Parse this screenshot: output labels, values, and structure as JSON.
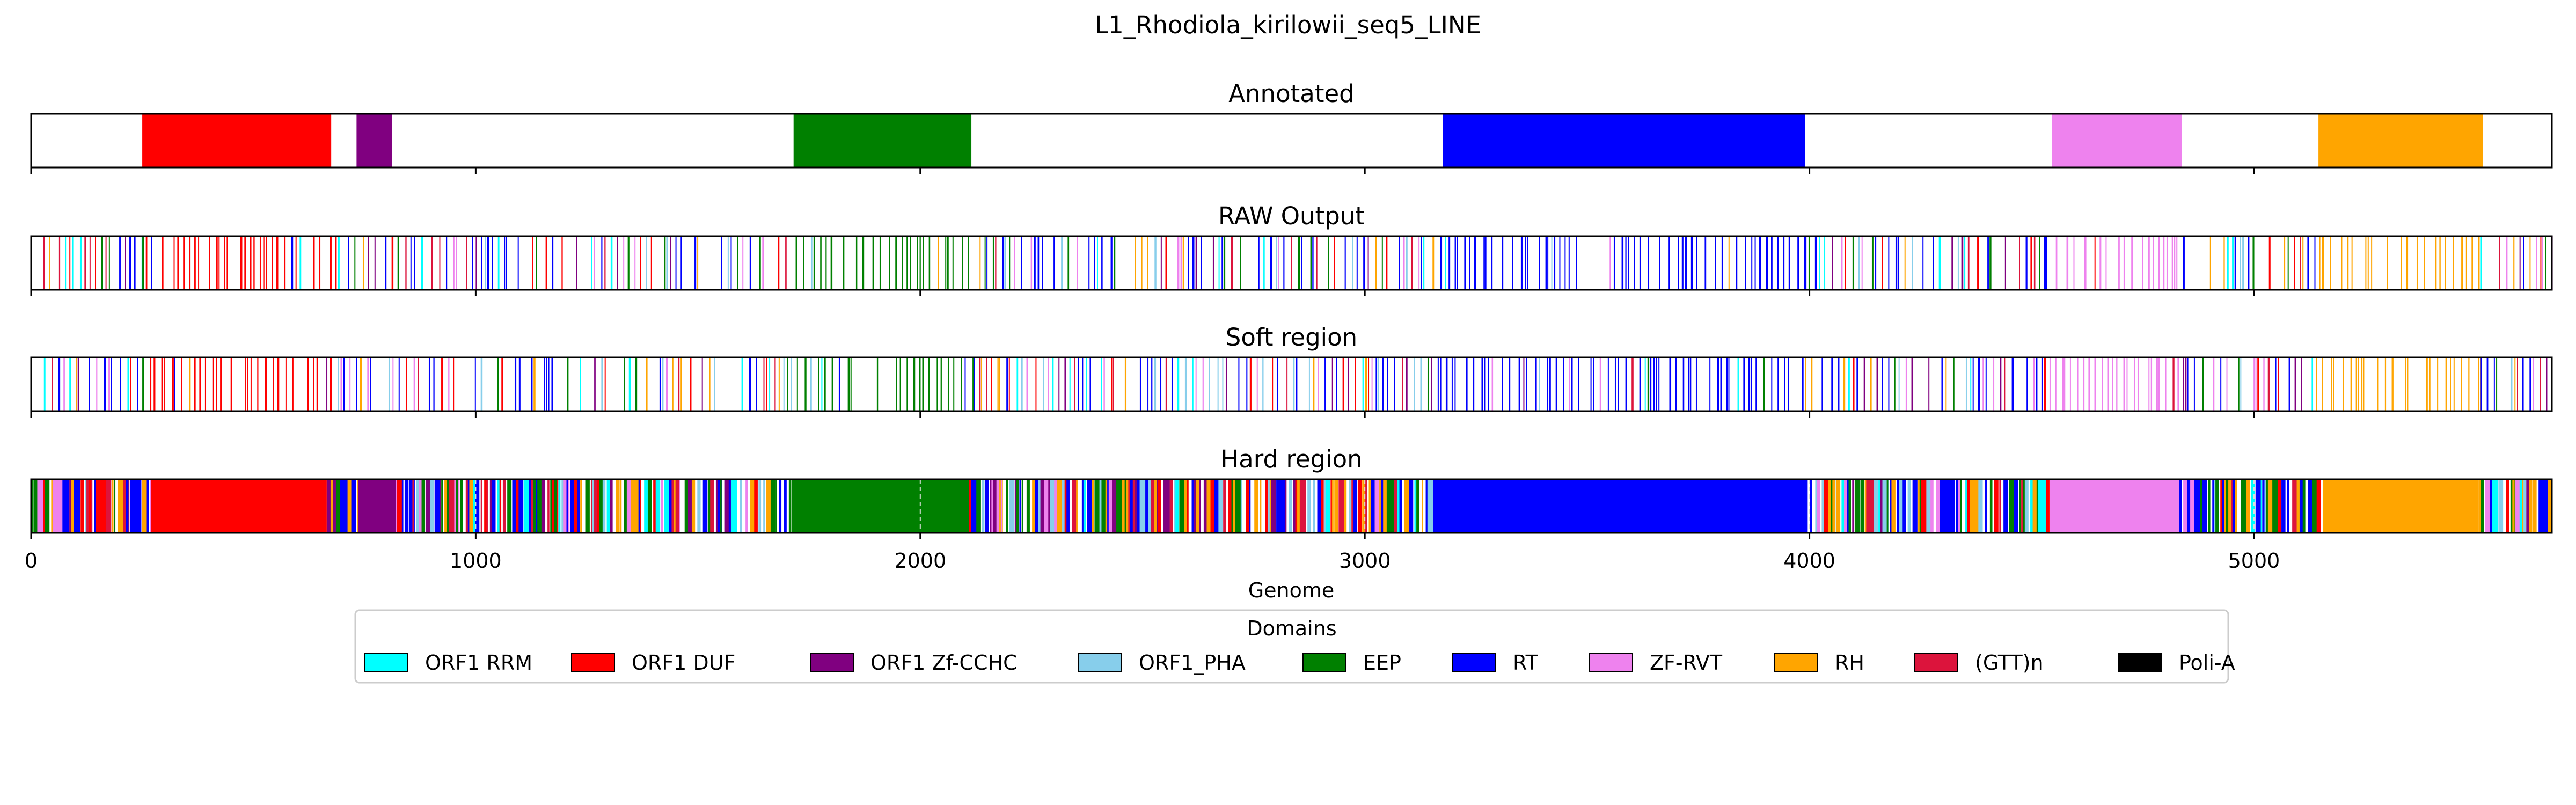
{
  "chart_data": {
    "type": "genome-track",
    "title": "L1_Rhodiola_kirilowii_seq5_LINE",
    "xlabel": "Genome",
    "xlim": [
      0,
      5670
    ],
    "xticks": [
      0,
      1000,
      2000,
      3000,
      4000,
      5000
    ],
    "xtick_labels": [
      "0",
      "1000",
      "2000",
      "3000",
      "4000",
      "5000"
    ],
    "legend_title": "Domains",
    "legend_position": "bottom-center",
    "domains": [
      {
        "key": "rrm",
        "name": "ORF1 RRM",
        "color": "#00ffff"
      },
      {
        "key": "duf",
        "name": "ORF1 DUF",
        "color": "#ff0000"
      },
      {
        "key": "zfcchc",
        "name": "ORF1 Zf-CCHC",
        "color": "#800080"
      },
      {
        "key": "pha",
        "name": "ORF1_PHA",
        "color": "#87ceeb"
      },
      {
        "key": "eep",
        "name": "EEP",
        "color": "#008000"
      },
      {
        "key": "rt",
        "name": "RT",
        "color": "#0000ff"
      },
      {
        "key": "zfrvt",
        "name": "ZF-RVT",
        "color": "#ee82ee"
      },
      {
        "key": "rh",
        "name": "RH",
        "color": "#ffa500"
      },
      {
        "key": "gtt",
        "name": "(GTT)n",
        "color": "#dc143c"
      },
      {
        "key": "polia",
        "name": "Poli-A",
        "color": "#000000"
      }
    ],
    "panels": [
      {
        "title": "Annotated",
        "segments": [
          {
            "domain": "duf",
            "start": 250,
            "end": 675
          },
          {
            "domain": "zfcchc",
            "start": 732,
            "end": 812
          },
          {
            "domain": "eep",
            "start": 1715,
            "end": 2115
          },
          {
            "domain": "rt",
            "start": 3175,
            "end": 3990
          },
          {
            "domain": "zfrvt",
            "start": 4545,
            "end": 4838
          },
          {
            "domain": "rh",
            "start": 5145,
            "end": 5515
          }
        ]
      },
      {
        "title": "RAW Output",
        "density": "sparse",
        "regions": [
          {
            "domain": "mix",
            "start": 0,
            "end": 250
          },
          {
            "domain": "duf",
            "start": 250,
            "end": 690
          },
          {
            "domain": "mix",
            "start": 690,
            "end": 1000
          },
          {
            "domain": "mix",
            "start": 1000,
            "end": 1700
          },
          {
            "domain": "eep",
            "start": 1700,
            "end": 2120
          },
          {
            "domain": "mix",
            "start": 2120,
            "end": 3170
          },
          {
            "domain": "rt",
            "start": 3170,
            "end": 3990
          },
          {
            "domain": "mix",
            "start": 3990,
            "end": 4540
          },
          {
            "domain": "zfrvt",
            "start": 4540,
            "end": 4840
          },
          {
            "domain": "mix",
            "start": 4840,
            "end": 5140
          },
          {
            "domain": "rh",
            "start": 5140,
            "end": 5510
          },
          {
            "domain": "mix",
            "start": 5510,
            "end": 5670
          }
        ]
      },
      {
        "title": "Soft region",
        "density": "sparse",
        "regions": [
          {
            "domain": "mix",
            "start": 0,
            "end": 250
          },
          {
            "domain": "duf",
            "start": 250,
            "end": 690
          },
          {
            "domain": "mix",
            "start": 690,
            "end": 1000
          },
          {
            "domain": "mix",
            "start": 1000,
            "end": 1700
          },
          {
            "domain": "eep",
            "start": 1700,
            "end": 2120
          },
          {
            "domain": "mix",
            "start": 2120,
            "end": 3170
          },
          {
            "domain": "rt",
            "start": 3170,
            "end": 3990
          },
          {
            "domain": "mix",
            "start": 3990,
            "end": 4540
          },
          {
            "domain": "zfrvt",
            "start": 4540,
            "end": 4840
          },
          {
            "domain": "mix",
            "start": 4840,
            "end": 5140
          },
          {
            "domain": "rh",
            "start": 5140,
            "end": 5510
          },
          {
            "domain": "mix",
            "start": 5510,
            "end": 5670
          }
        ]
      },
      {
        "title": "Hard region",
        "density": "dense",
        "solid": [
          {
            "domain": "duf",
            "start": 270,
            "end": 665
          },
          {
            "domain": "zfcchc",
            "start": 735,
            "end": 820
          },
          {
            "domain": "eep",
            "start": 1710,
            "end": 2110
          },
          {
            "domain": "rt",
            "start": 3160,
            "end": 3990
          },
          {
            "domain": "zfrvt",
            "start": 4540,
            "end": 4825
          },
          {
            "domain": "rh",
            "start": 5155,
            "end": 5505
          }
        ],
        "regions": [
          {
            "domain": "mix",
            "start": 0,
            "end": 270
          },
          {
            "domain": "mix",
            "start": 665,
            "end": 735
          },
          {
            "domain": "mix",
            "start": 820,
            "end": 1710
          },
          {
            "domain": "mix",
            "start": 2110,
            "end": 3160
          },
          {
            "domain": "mix",
            "start": 3990,
            "end": 4540
          },
          {
            "domain": "mix",
            "start": 4825,
            "end": 5155
          },
          {
            "domain": "mix",
            "start": 5505,
            "end": 5670
          }
        ]
      }
    ]
  }
}
